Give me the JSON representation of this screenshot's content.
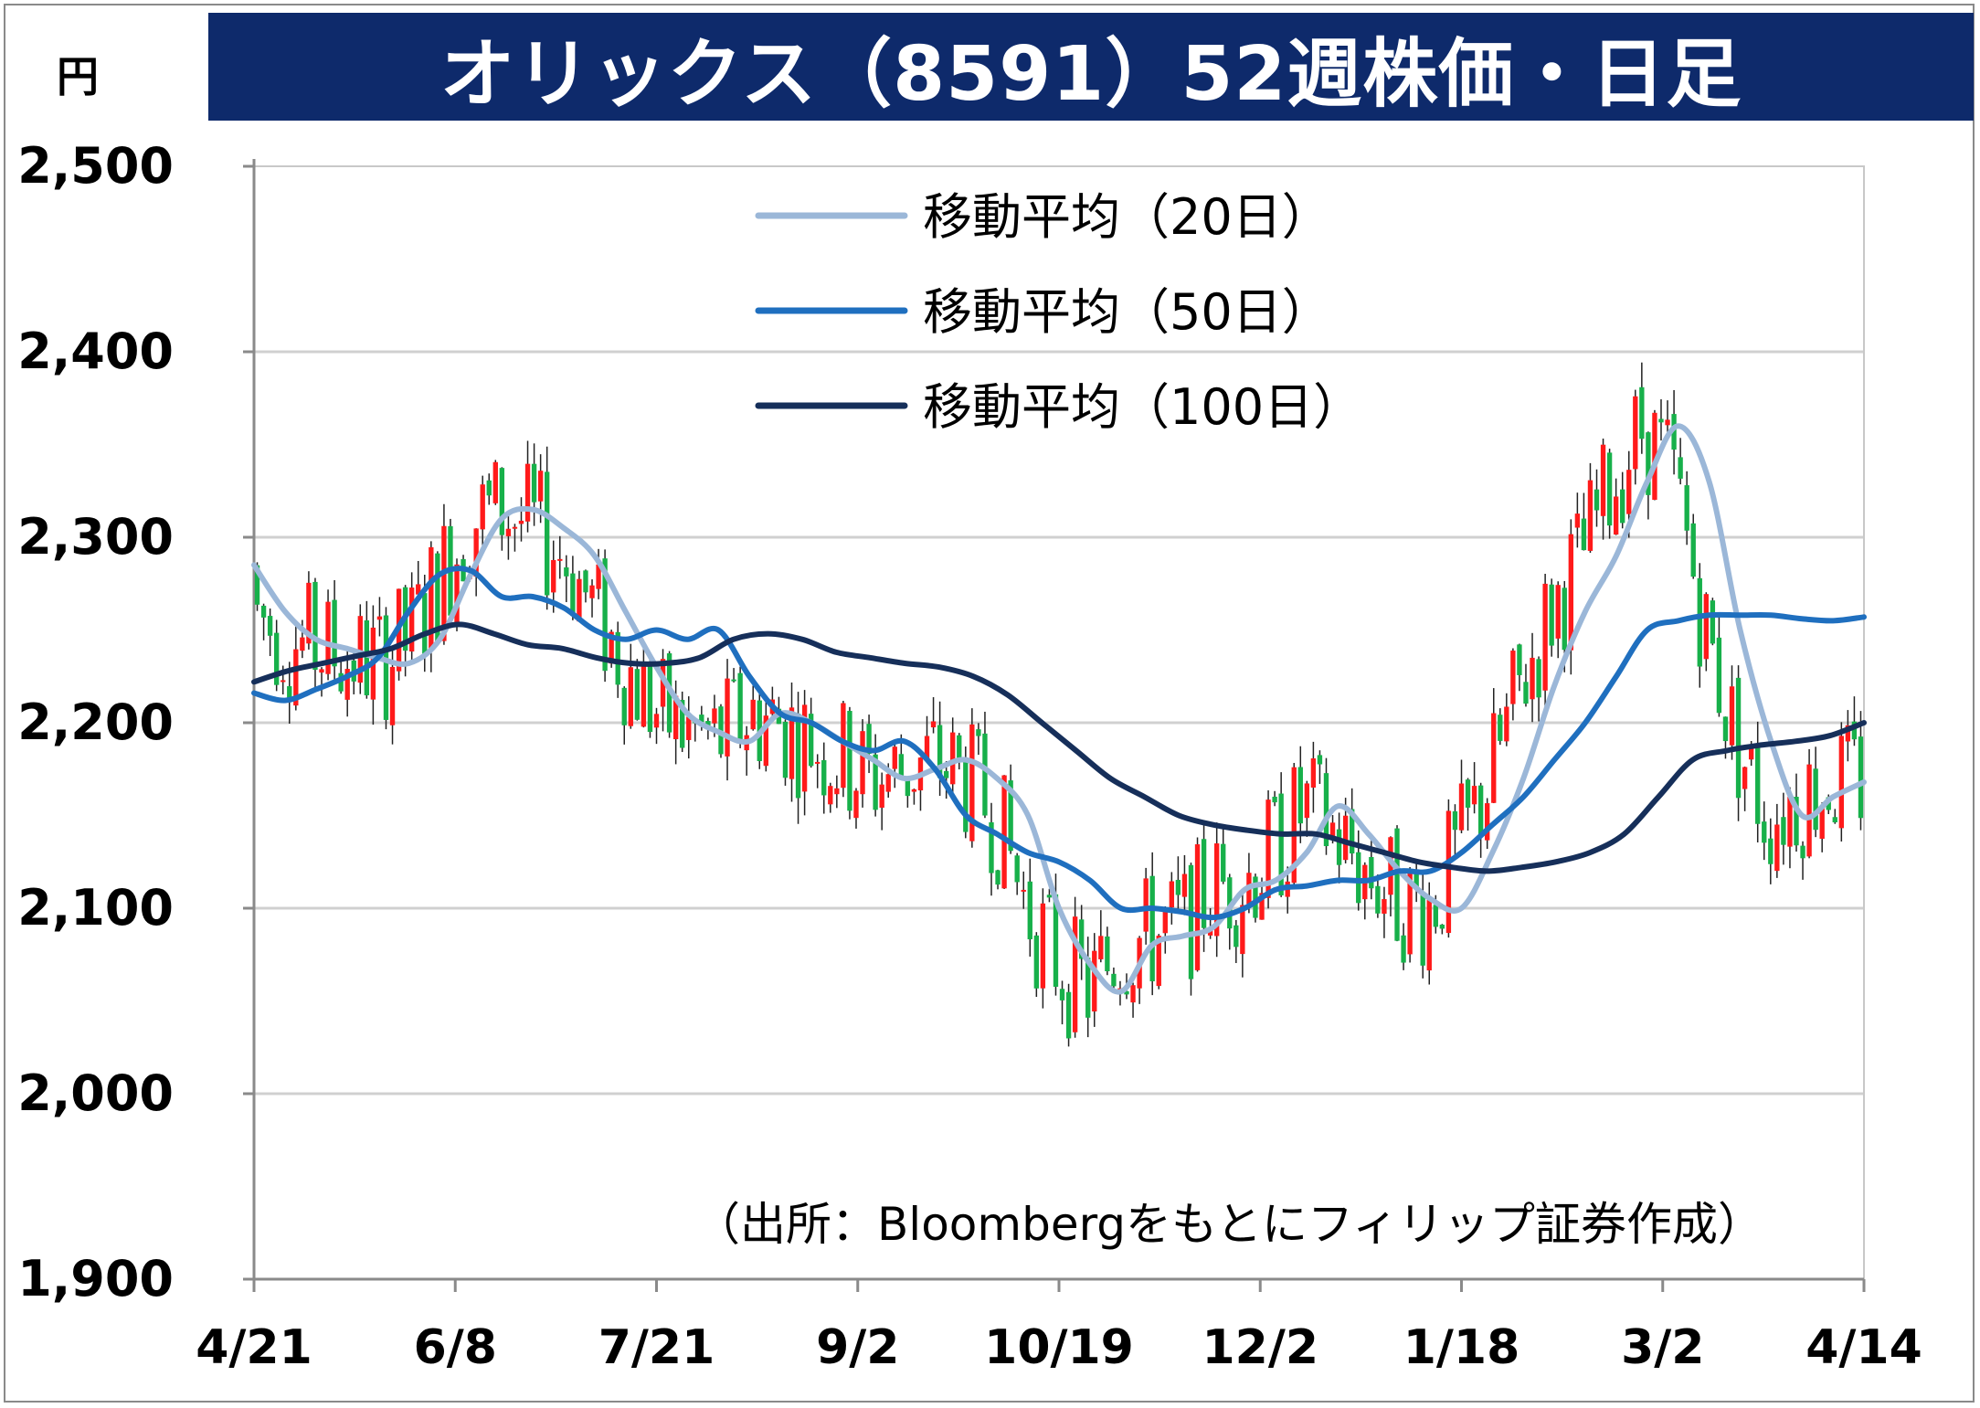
{
  "chart_data": {
    "type": "candlestick",
    "title": "オリックス（8591）52週株価・日足",
    "unit": "円",
    "ylim": [
      1900,
      2500
    ],
    "yticks": [
      "2,500",
      "2,400",
      "2,300",
      "2,200",
      "2,100",
      "2,000",
      "1,900"
    ],
    "ytick_values": [
      2500,
      2400,
      2300,
      2200,
      2100,
      2000,
      1900
    ],
    "xticks": [
      "4/21",
      "6/8",
      "7/21",
      "9/2",
      "10/19",
      "12/2",
      "1/18",
      "3/2",
      "4/14"
    ],
    "grid": true,
    "legend_position": "top-center",
    "source": "（出所：Bloombergをもとにフィリップ証券作成）",
    "series": [
      {
        "name": "移動平均（20日）",
        "color": "#9bb7d8",
        "values": [
          2285,
          2260,
          2245,
          2240,
          2235,
          2232,
          2245,
          2280,
          2310,
          2315,
          2305,
          2290,
          2260,
          2230,
          2205,
          2195,
          2190,
          2205,
          2200,
          2190,
          2180,
          2170,
          2175,
          2180,
          2170,
          2150,
          2100,
          2070,
          2055,
          2080,
          2085,
          2090,
          2110,
          2115,
          2130,
          2155,
          2140,
          2120,
          2105,
          2100,
          2130,
          2170,
          2220,
          2260,
          2290,
          2330,
          2360,
          2330,
          2250,
          2190,
          2150,
          2160,
          2168
        ]
      },
      {
        "name": "移動平均（50日）",
        "color": "#1f6fbf",
        "values": [
          2216,
          2212,
          2218,
          2225,
          2235,
          2260,
          2280,
          2282,
          2268,
          2268,
          2262,
          2250,
          2245,
          2250,
          2245,
          2250,
          2225,
          2205,
          2200,
          2190,
          2185,
          2190,
          2175,
          2150,
          2140,
          2130,
          2125,
          2115,
          2100,
          2100,
          2098,
          2095,
          2100,
          2110,
          2112,
          2115,
          2115,
          2120,
          2120,
          2130,
          2145,
          2160,
          2180,
          2200,
          2225,
          2250,
          2255,
          2258,
          2258,
          2258,
          2256,
          2255,
          2257
        ]
      },
      {
        "name": "移動平均（100日）",
        "color": "#162f5a",
        "values": [
          2222,
          2228,
          2232,
          2236,
          2240,
          2248,
          2253,
          2248,
          2242,
          2240,
          2235,
          2232,
          2232,
          2235,
          2245,
          2248,
          2245,
          2238,
          2235,
          2232,
          2230,
          2225,
          2215,
          2200,
          2185,
          2170,
          2160,
          2150,
          2145,
          2142,
          2140,
          2140,
          2135,
          2130,
          2125,
          2122,
          2120,
          2122,
          2125,
          2130,
          2140,
          2160,
          2180,
          2185,
          2188,
          2190,
          2193,
          2200
        ]
      }
    ]
  }
}
